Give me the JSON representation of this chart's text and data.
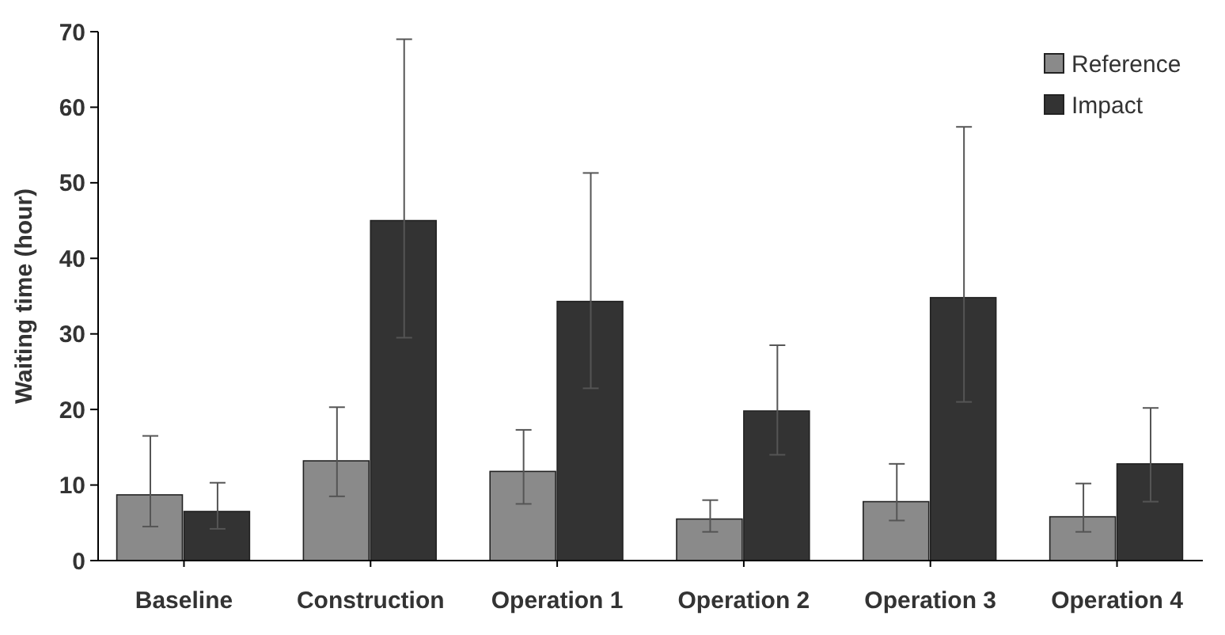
{
  "chart_data": {
    "type": "bar",
    "ylabel": "Waiting time (hour)",
    "categories": [
      "Baseline",
      "Construction",
      "Operation 1",
      "Operation 2",
      "Operation 3",
      "Operation 4"
    ],
    "series": [
      {
        "name": "Reference",
        "color": "#8a8a8a",
        "values": [
          8.7,
          13.2,
          11.8,
          5.5,
          7.8,
          5.8
        ],
        "errors": [
          [
            4.5,
            16.5
          ],
          [
            8.5,
            20.3
          ],
          [
            7.5,
            17.3
          ],
          [
            3.8,
            8
          ],
          [
            5.3,
            12.8
          ],
          [
            3.8,
            10.2
          ]
        ]
      },
      {
        "name": "Impact",
        "color": "#333333",
        "values": [
          6.5,
          45,
          34.3,
          19.8,
          34.8,
          12.8
        ],
        "errors": [
          [
            4.2,
            10.3
          ],
          [
            29.5,
            69
          ],
          [
            22.8,
            51.3
          ],
          [
            14,
            28.5
          ],
          [
            21,
            57.4
          ],
          [
            7.8,
            20.2
          ]
        ]
      }
    ],
    "ylim": [
      0,
      70
    ],
    "yticks": [
      0,
      10,
      20,
      30,
      40,
      50,
      60,
      70
    ],
    "legend": "top right"
  }
}
